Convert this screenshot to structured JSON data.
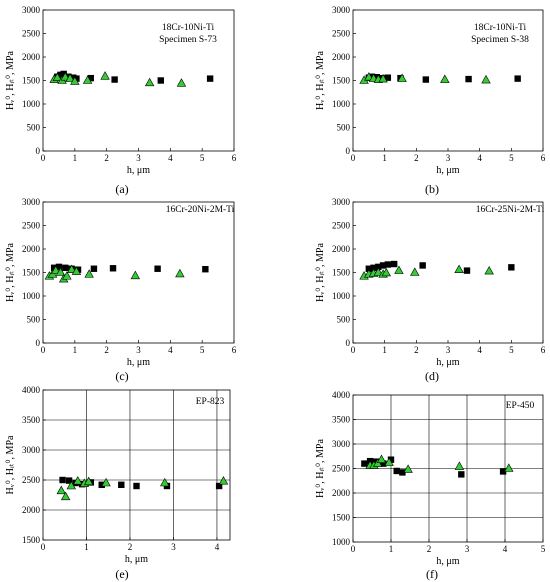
{
  "chart_data": [
    {
      "type": "scatter",
      "panel_label": "(a)",
      "annotation": [
        "18Cr-10Ni-Ti",
        "Specimen S-73"
      ],
      "xlabel": "h, μm",
      "ylabel": "Hᵥ⁰, Hᵢₜ⁰, MPa",
      "xlim": [
        0,
        6
      ],
      "ylim": [
        0,
        3000
      ],
      "xticks": [
        0,
        1,
        2,
        3,
        4,
        5,
        6
      ],
      "yticks": [
        0,
        500,
        1000,
        1500,
        2000,
        2500,
        3000
      ],
      "grid": false,
      "series": [
        {
          "marker": "square",
          "color": "#000000",
          "points": [
            [
              0.45,
              1580
            ],
            [
              0.55,
              1620
            ],
            [
              0.65,
              1640
            ],
            [
              0.8,
              1580
            ],
            [
              0.95,
              1560
            ],
            [
              1.05,
              1540
            ],
            [
              1.5,
              1550
            ],
            [
              2.25,
              1520
            ],
            [
              3.7,
              1500
            ],
            [
              5.25,
              1540
            ]
          ]
        },
        {
          "marker": "triangle",
          "color": "#33cc33",
          "points": [
            [
              0.35,
              1520
            ],
            [
              0.45,
              1560
            ],
            [
              0.6,
              1500
            ],
            [
              0.7,
              1570
            ],
            [
              0.85,
              1540
            ],
            [
              1.0,
              1480
            ],
            [
              1.4,
              1500
            ],
            [
              1.95,
              1590
            ],
            [
              3.35,
              1450
            ],
            [
              4.35,
              1440
            ]
          ]
        }
      ]
    },
    {
      "type": "scatter",
      "panel_label": "(b)",
      "annotation": [
        "18Cr-10Ni-Ti",
        "Specimen S-38"
      ],
      "xlabel": "h, μm",
      "ylabel": "Hᵥ⁰, Hᵢₜ⁰, MPa",
      "xlim": [
        0,
        6
      ],
      "ylim": [
        0,
        3000
      ],
      "xticks": [
        0,
        1,
        2,
        3,
        4,
        5,
        6
      ],
      "yticks": [
        0,
        500,
        1000,
        1500,
        2000,
        2500,
        3000
      ],
      "grid": false,
      "series": [
        {
          "marker": "square",
          "color": "#000000",
          "points": [
            [
              0.5,
              1560
            ],
            [
              0.6,
              1580
            ],
            [
              0.75,
              1570
            ],
            [
              0.9,
              1550
            ],
            [
              1.1,
              1560
            ],
            [
              1.5,
              1550
            ],
            [
              2.3,
              1520
            ],
            [
              3.65,
              1530
            ],
            [
              5.2,
              1540
            ]
          ]
        },
        {
          "marker": "triangle",
          "color": "#33cc33",
          "points": [
            [
              0.35,
              1500
            ],
            [
              0.5,
              1570
            ],
            [
              0.65,
              1540
            ],
            [
              0.8,
              1520
            ],
            [
              0.95,
              1530
            ],
            [
              1.55,
              1540
            ],
            [
              2.9,
              1520
            ],
            [
              4.2,
              1510
            ]
          ]
        }
      ]
    },
    {
      "type": "scatter",
      "panel_label": "(c)",
      "annotation": [
        "16Cr-20Ni-2M-Ti"
      ],
      "xlabel": "h, μm",
      "ylabel": "Hᵥ⁰, Hᵢₜ⁰, MPa",
      "xlim": [
        0,
        6
      ],
      "ylim": [
        0,
        3000
      ],
      "xticks": [
        0,
        1,
        2,
        3,
        4,
        5,
        6
      ],
      "yticks": [
        0,
        500,
        1000,
        1500,
        2000,
        2500,
        3000
      ],
      "grid": false,
      "series": [
        {
          "marker": "square",
          "color": "#000000",
          "points": [
            [
              0.35,
              1600
            ],
            [
              0.5,
              1620
            ],
            [
              0.7,
              1600
            ],
            [
              0.9,
              1580
            ],
            [
              1.1,
              1560
            ],
            [
              1.6,
              1580
            ],
            [
              2.2,
              1590
            ],
            [
              3.6,
              1580
            ],
            [
              5.1,
              1570
            ]
          ]
        },
        {
          "marker": "triangle",
          "color": "#33cc33",
          "points": [
            [
              0.2,
              1420
            ],
            [
              0.3,
              1460
            ],
            [
              0.4,
              1540
            ],
            [
              0.55,
              1500
            ],
            [
              0.65,
              1360
            ],
            [
              0.75,
              1420
            ],
            [
              0.9,
              1560
            ],
            [
              1.05,
              1520
            ],
            [
              1.45,
              1460
            ],
            [
              2.9,
              1430
            ],
            [
              4.3,
              1470
            ]
          ]
        }
      ]
    },
    {
      "type": "scatter",
      "panel_label": "(d)",
      "annotation": [
        "16Cr-25Ni-2M-Ti"
      ],
      "xlabel": "h, μm",
      "ylabel": "Hᵥ⁰, Hᵢₜ⁰, MPa",
      "xlim": [
        0,
        6
      ],
      "ylim": [
        0,
        3000
      ],
      "xticks": [
        0,
        1,
        2,
        3,
        4,
        5,
        6
      ],
      "yticks": [
        0,
        500,
        1000,
        1500,
        2000,
        2500,
        3000
      ],
      "grid": false,
      "series": [
        {
          "marker": "square",
          "color": "#000000",
          "points": [
            [
              0.5,
              1580
            ],
            [
              0.65,
              1600
            ],
            [
              0.8,
              1620
            ],
            [
              0.95,
              1650
            ],
            [
              1.1,
              1670
            ],
            [
              1.3,
              1680
            ],
            [
              2.2,
              1650
            ],
            [
              3.6,
              1540
            ],
            [
              5.0,
              1610
            ]
          ]
        },
        {
          "marker": "triangle",
          "color": "#33cc33",
          "points": [
            [
              0.35,
              1420
            ],
            [
              0.5,
              1460
            ],
            [
              0.65,
              1480
            ],
            [
              0.8,
              1500
            ],
            [
              0.95,
              1460
            ],
            [
              1.05,
              1490
            ],
            [
              1.45,
              1540
            ],
            [
              1.95,
              1500
            ],
            [
              3.35,
              1560
            ],
            [
              4.3,
              1530
            ]
          ]
        }
      ]
    },
    {
      "type": "scatter",
      "panel_label": "(e)",
      "annotation": [
        "EP-823"
      ],
      "xlabel": "h, μm",
      "ylabel": "Hᵥ⁰, Hᵢₜ⁰, MPa",
      "xlim": [
        0,
        4.3
      ],
      "ylim": [
        1500,
        4000
      ],
      "xticks": [
        0,
        1,
        2,
        3,
        4
      ],
      "yticks": [
        1500,
        2000,
        2500,
        3000,
        3500,
        4000
      ],
      "grid": true,
      "series": [
        {
          "marker": "square",
          "color": "#000000",
          "points": [
            [
              0.45,
              2500
            ],
            [
              0.6,
              2490
            ],
            [
              0.75,
              2450
            ],
            [
              0.9,
              2430
            ],
            [
              1.1,
              2460
            ],
            [
              1.35,
              2420
            ],
            [
              1.8,
              2420
            ],
            [
              2.15,
              2400
            ],
            [
              2.85,
              2400
            ],
            [
              4.05,
              2400
            ]
          ]
        },
        {
          "marker": "triangle",
          "color": "#33cc33",
          "points": [
            [
              0.42,
              2320
            ],
            [
              0.52,
              2220
            ],
            [
              0.65,
              2400
            ],
            [
              0.8,
              2480
            ],
            [
              0.95,
              2440
            ],
            [
              1.05,
              2470
            ],
            [
              1.45,
              2450
            ],
            [
              2.8,
              2450
            ],
            [
              4.15,
              2480
            ]
          ]
        }
      ]
    },
    {
      "type": "scatter",
      "panel_label": "(f)",
      "annotation": [
        "EP-450"
      ],
      "xlabel": "h, μm",
      "ylabel": "Hᵥ⁰, Hᵢₜ⁰, MPa",
      "xlim": [
        0,
        5
      ],
      "ylim": [
        1000,
        4000
      ],
      "xticks": [
        0,
        1,
        2,
        3,
        4,
        5
      ],
      "yticks": [
        1000,
        1500,
        2000,
        2500,
        3000,
        3500,
        4000
      ],
      "grid": true,
      "series": [
        {
          "marker": "square",
          "color": "#000000",
          "points": [
            [
              0.3,
              2600
            ],
            [
              0.45,
              2650
            ],
            [
              0.6,
              2640
            ],
            [
              0.8,
              2600
            ],
            [
              1.0,
              2680
            ],
            [
              1.15,
              2450
            ],
            [
              1.3,
              2420
            ],
            [
              2.85,
              2380
            ],
            [
              3.95,
              2440
            ]
          ]
        },
        {
          "marker": "triangle",
          "color": "#33cc33",
          "points": [
            [
              0.45,
              2560
            ],
            [
              0.55,
              2560
            ],
            [
              0.65,
              2600
            ],
            [
              0.75,
              2680
            ],
            [
              0.95,
              2620
            ],
            [
              1.45,
              2480
            ],
            [
              2.8,
              2540
            ],
            [
              4.1,
              2500
            ]
          ]
        }
      ]
    }
  ]
}
